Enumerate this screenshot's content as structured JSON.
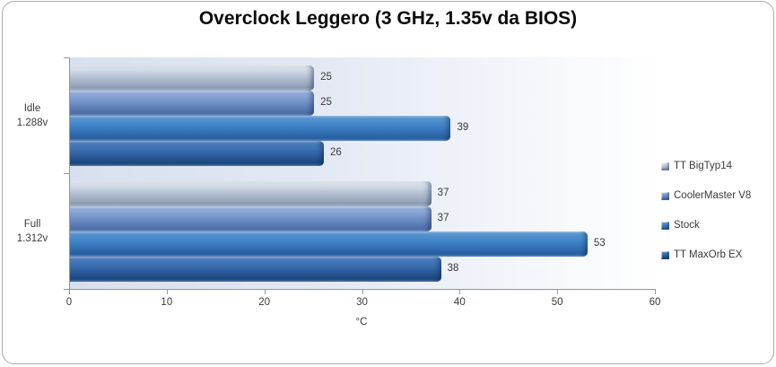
{
  "chart": {
    "title": "Overclock Leggero (3 GHz, 1.35v da BIOS)",
    "axis_title": "°C"
  },
  "chart_data": {
    "type": "bar",
    "orientation": "horizontal",
    "title": "Overclock Leggero (3 GHz, 1.35v da BIOS)",
    "xlabel": "°C",
    "ylabel": "",
    "categories": [
      "Idle 1.288v",
      "Full 1.312v"
    ],
    "category_lines": [
      [
        "Idle",
        "1.288v"
      ],
      [
        "Full",
        "1.312v"
      ]
    ],
    "series": [
      {
        "name": "TT BigTyp14",
        "values": [
          25,
          37
        ],
        "color": "#bac6d7"
      },
      {
        "name": "CoolerMaster V8",
        "values": [
          25,
          37
        ],
        "color": "#7392c8"
      },
      {
        "name": "Stock",
        "values": [
          39,
          53
        ],
        "color": "#3d7fc4"
      },
      {
        "name": "TT MaxOrb EX",
        "values": [
          26,
          38
        ],
        "color": "#3568a9"
      }
    ],
    "xlim": [
      0,
      60
    ],
    "x_ticks": [
      0,
      10,
      20,
      30,
      40,
      50,
      60
    ],
    "grid": false,
    "data_labels": true,
    "legend_position": "right",
    "plot_bg_gradient": [
      "#d8e0ef",
      "#ffffff"
    ],
    "frame_border_color": "#ababab",
    "axis_color": "#8e979f",
    "text_color": "#3a3a3a"
  }
}
